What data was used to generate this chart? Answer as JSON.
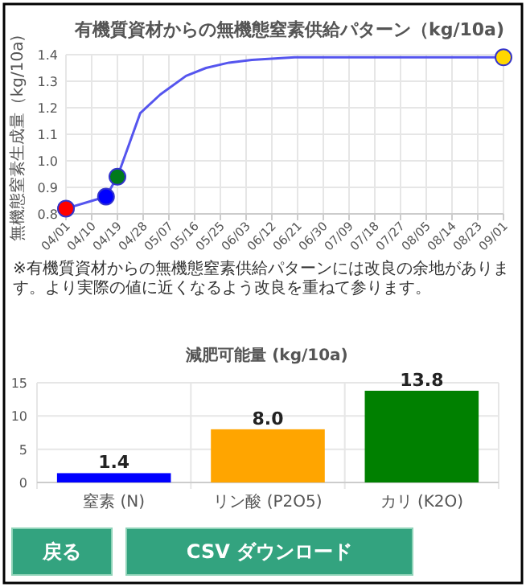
{
  "chart_data": [
    {
      "type": "line",
      "title": "有機質資材からの無機態窒素供給パターン（kg/10a)",
      "ylabel": "無機態窒素生成量（kg/10a)",
      "xlim": [
        "--04-01",
        "--09-01"
      ],
      "ylim": [
        0.8,
        1.4
      ],
      "yticks": [
        0.8,
        0.9,
        {
          "value": 1.0,
          "label": "1.0"
        },
        1.1,
        1.2,
        1.3,
        1.4
      ],
      "xticks": [
        {
          "value": "--04-01",
          "label": "04/01"
        },
        {
          "value": "--04-10",
          "label": "04/10"
        },
        {
          "value": "--04-19",
          "label": "04/19"
        },
        {
          "value": "--04-28",
          "label": "04/28"
        },
        {
          "value": "--05-07",
          "label": "05/07"
        },
        {
          "value": "--05-16",
          "label": "05/16"
        },
        {
          "value": "--05-25",
          "label": "05/25"
        },
        {
          "value": "--06-03",
          "label": "06/03"
        },
        {
          "value": "--06-12",
          "label": "06/12"
        },
        {
          "value": "--06-21",
          "label": "06/21"
        },
        {
          "value": "--06-30",
          "label": "06/30"
        },
        {
          "value": "--07-09",
          "label": "07/09"
        },
        {
          "value": "--07-18",
          "label": "07/18"
        },
        {
          "value": "--07-27",
          "label": "07/27"
        },
        {
          "value": "--08-05",
          "label": "08/05"
        },
        {
          "value": "--08-14",
          "label": "08/14"
        },
        {
          "value": "--08-23",
          "label": "08/23"
        },
        {
          "value": "--09-01",
          "label": "09/01"
        }
      ],
      "grid": true,
      "series": [
        {
          "type": "line",
          "color": "#5555ee",
          "marker": "none",
          "x": [
            "--04-01",
            "--04-15",
            "--04-19",
            "--04-23",
            "--04-27",
            "--05-04",
            "--05-13",
            "--05-20",
            "--05-28",
            "--06-05",
            "--06-20",
            "--07-10",
            "--09-01"
          ],
          "values": [
            0.82,
            0.865,
            0.94,
            1.06,
            1.18,
            1.25,
            1.32,
            1.35,
            1.37,
            1.38,
            1.39,
            1.39,
            1.39
          ]
        },
        {
          "type": "scatter",
          "marker": "circle",
          "x": [
            "--04-01",
            "--04-15",
            "--04-19",
            "--09-01"
          ],
          "values": [
            0.82,
            0.865,
            0.94,
            1.39
          ],
          "colors": [
            "#ff0000",
            "#0000ff",
            "#007a1a",
            "#ffd700"
          ]
        }
      ],
      "annotations": [
        "※有機質資材からの無機態窒素供給パターンには改良の余地があります。より実際の値に近くなるよう改良を重ねて参ります。"
      ]
    },
    {
      "type": "bar",
      "title": "減肥可能量 (kg/10a)",
      "categories": [
        "窒素 (N)",
        "リン酸 (P2O5)",
        "カリ (K2O)"
      ],
      "values": [
        1.4,
        8.0,
        13.8
      ],
      "colors": [
        "#0000ff",
        "#ffa500",
        "#008000"
      ],
      "ylim": [
        0,
        15
      ],
      "yticks": [
        0,
        5,
        10,
        15
      ],
      "grid": true,
      "value_labels": [
        "1.4",
        "8.0",
        "13.8"
      ]
    },
    {
      "type": "other",
      "annotations": [
        "戻る",
        "CSV ダウンロード"
      ]
    }
  ]
}
